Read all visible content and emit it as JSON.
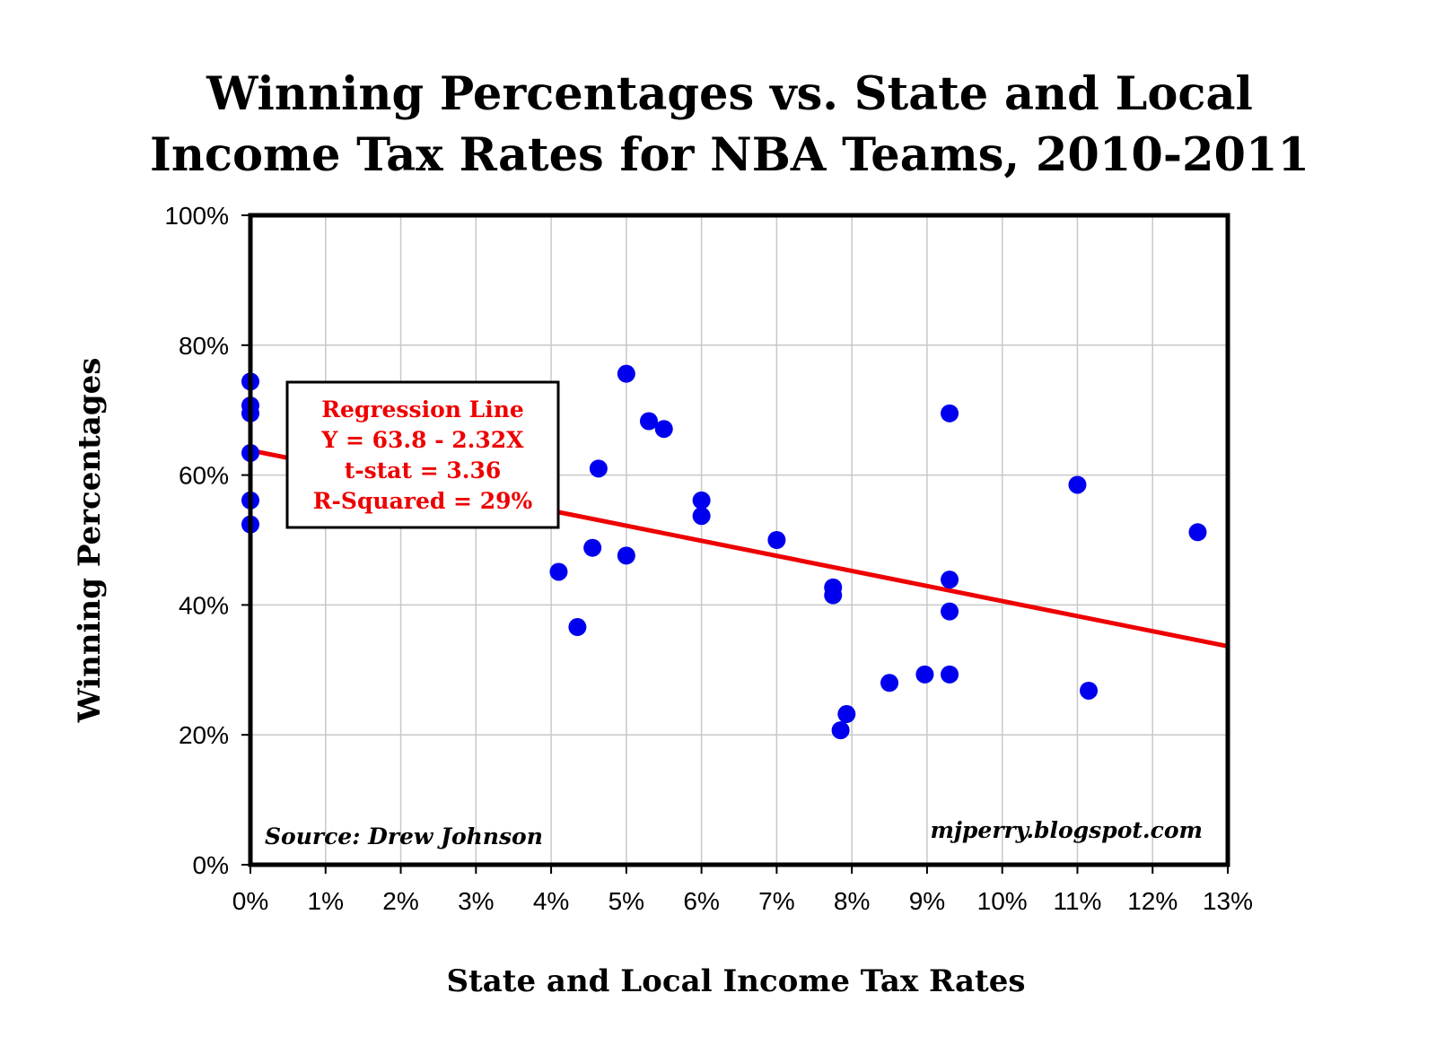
{
  "chart_data": {
    "type": "scatter",
    "title_lines": [
      "Winning Percentages vs. State and Local",
      "Income Tax Rates for NBA Teams, 2010-2011"
    ],
    "xlabel": "State and Local Income Tax Rates",
    "ylabel": "Winning Percentages",
    "xlim": [
      0,
      13
    ],
    "ylim": [
      0,
      100
    ],
    "x_ticks": [
      0,
      1,
      2,
      3,
      4,
      5,
      6,
      7,
      8,
      9,
      10,
      11,
      12,
      13
    ],
    "y_ticks": [
      0,
      20,
      40,
      60,
      80,
      100
    ],
    "x_tick_labels": [
      "0%",
      "1%",
      "2%",
      "3%",
      "4%",
      "5%",
      "6%",
      "7%",
      "8%",
      "9%",
      "10%",
      "11%",
      "12%",
      "13%"
    ],
    "y_tick_labels": [
      "0%",
      "20%",
      "40%",
      "60%",
      "80%",
      "100%"
    ],
    "grid": true,
    "points": [
      {
        "x": 0,
        "y": 74.4
      },
      {
        "x": 0,
        "y": 70.7
      },
      {
        "x": 0,
        "y": 69.5
      },
      {
        "x": 0,
        "y": 63.4
      },
      {
        "x": 0,
        "y": 56.1
      },
      {
        "x": 0,
        "y": 52.4
      },
      {
        "x": 4.1,
        "y": 45.1
      },
      {
        "x": 4.35,
        "y": 36.6
      },
      {
        "x": 4.55,
        "y": 48.8
      },
      {
        "x": 4.63,
        "y": 61.0
      },
      {
        "x": 5.0,
        "y": 75.6
      },
      {
        "x": 5.0,
        "y": 47.6
      },
      {
        "x": 5.3,
        "y": 68.3
      },
      {
        "x": 5.5,
        "y": 67.1
      },
      {
        "x": 6.0,
        "y": 56.1
      },
      {
        "x": 6.0,
        "y": 53.7
      },
      {
        "x": 7.0,
        "y": 50.0
      },
      {
        "x": 7.75,
        "y": 42.7
      },
      {
        "x": 7.75,
        "y": 41.5
      },
      {
        "x": 7.85,
        "y": 20.7
      },
      {
        "x": 7.93,
        "y": 23.2
      },
      {
        "x": 8.5,
        "y": 28.0
      },
      {
        "x": 8.97,
        "y": 29.3
      },
      {
        "x": 9.3,
        "y": 69.5
      },
      {
        "x": 9.3,
        "y": 43.9
      },
      {
        "x": 9.3,
        "y": 39.0
      },
      {
        "x": 9.3,
        "y": 29.3
      },
      {
        "x": 11.0,
        "y": 58.5
      },
      {
        "x": 11.15,
        "y": 26.8
      },
      {
        "x": 12.6,
        "y": 51.2
      }
    ],
    "regression": {
      "intercept": 63.8,
      "slope": -2.32
    },
    "series_color": "#0000ee",
    "regression_color": "#ee0000",
    "annotation_lines": [
      "Regression Line",
      "Y = 63.8 - 2.32X",
      "t-stat = 3.36",
      "R-Squared = 29%"
    ],
    "source_note": "Source: Drew Johnson",
    "site_note": "mjperry.blogspot.com"
  }
}
